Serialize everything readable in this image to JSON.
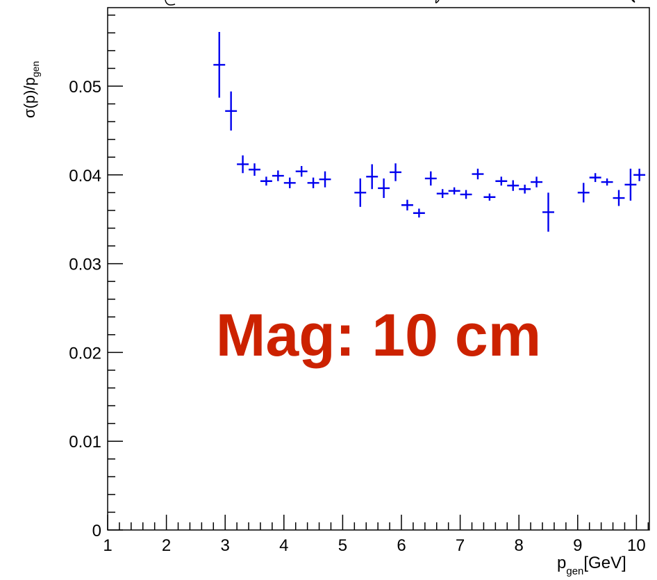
{
  "chart_data": {
    "type": "scatter",
    "title": "",
    "xlabel": {
      "main": "p",
      "sub": "gen",
      "unit": "[GeV]"
    },
    "ylabel": {
      "main": "σ(p)/p",
      "sub": "gen"
    },
    "xlim": [
      1,
      10.1
    ],
    "ylim": [
      0,
      0.06
    ],
    "x_ticks": [
      1,
      2,
      3,
      4,
      5,
      6,
      7,
      8,
      9,
      10
    ],
    "x_tick_labels": [
      "1",
      "2",
      "3",
      "4",
      "5",
      "6",
      "7",
      "8",
      "9",
      "10"
    ],
    "y_ticks": [
      0,
      0.01,
      0.02,
      0.03,
      0.04,
      0.05
    ],
    "y_tick_labels": [
      "0",
      "0.01",
      "0.02",
      "0.03",
      "0.04",
      "0.05"
    ],
    "grid": false,
    "series_color": "#0000ee",
    "x_bin_half_width": 0.1,
    "points": [
      {
        "x": 2.9,
        "y": 0.0524,
        "err": 0.0037
      },
      {
        "x": 3.1,
        "y": 0.0472,
        "err": 0.0022
      },
      {
        "x": 3.3,
        "y": 0.0412,
        "err": 0.001
      },
      {
        "x": 3.5,
        "y": 0.0406,
        "err": 0.0007
      },
      {
        "x": 3.7,
        "y": 0.0393,
        "err": 0.0005
      },
      {
        "x": 3.9,
        "y": 0.0399,
        "err": 0.0006
      },
      {
        "x": 4.1,
        "y": 0.0391,
        "err": 0.0006
      },
      {
        "x": 4.3,
        "y": 0.0404,
        "err": 0.0006
      },
      {
        "x": 4.5,
        "y": 0.0391,
        "err": 0.0006
      },
      {
        "x": 4.7,
        "y": 0.0395,
        "err": 0.0009
      },
      {
        "x": 5.3,
        "y": 0.038,
        "err": 0.0016
      },
      {
        "x": 5.5,
        "y": 0.0398,
        "err": 0.0014
      },
      {
        "x": 5.7,
        "y": 0.0385,
        "err": 0.0011
      },
      {
        "x": 5.9,
        "y": 0.0403,
        "err": 0.001
      },
      {
        "x": 6.1,
        "y": 0.0366,
        "err": 0.0006
      },
      {
        "x": 6.3,
        "y": 0.0357,
        "err": 0.0005
      },
      {
        "x": 6.5,
        "y": 0.0396,
        "err": 0.0008
      },
      {
        "x": 6.7,
        "y": 0.0379,
        "err": 0.0005
      },
      {
        "x": 6.9,
        "y": 0.0382,
        "err": 0.0004
      },
      {
        "x": 7.1,
        "y": 0.0378,
        "err": 0.0005
      },
      {
        "x": 7.3,
        "y": 0.0401,
        "err": 0.0006
      },
      {
        "x": 7.5,
        "y": 0.0375,
        "err": 0.0004
      },
      {
        "x": 7.7,
        "y": 0.0393,
        "err": 0.0005
      },
      {
        "x": 7.9,
        "y": 0.0388,
        "err": 0.0006
      },
      {
        "x": 8.1,
        "y": 0.0384,
        "err": 0.0005
      },
      {
        "x": 8.3,
        "y": 0.0392,
        "err": 0.0006
      },
      {
        "x": 8.5,
        "y": 0.0358,
        "err": 0.0022
      },
      {
        "x": 9.1,
        "y": 0.038,
        "err": 0.0011
      },
      {
        "x": 9.3,
        "y": 0.0397,
        "err": 0.0005
      },
      {
        "x": 9.5,
        "y": 0.0392,
        "err": 0.0004
      },
      {
        "x": 9.7,
        "y": 0.0374,
        "err": 0.0009
      },
      {
        "x": 9.9,
        "y": 0.0389,
        "err": 0.0018
      },
      {
        "x": 10.05,
        "y": 0.04,
        "err": 0.0007
      }
    ],
    "annotation": {
      "text": "Mag: 10 cm",
      "color": "#cc2200"
    }
  }
}
